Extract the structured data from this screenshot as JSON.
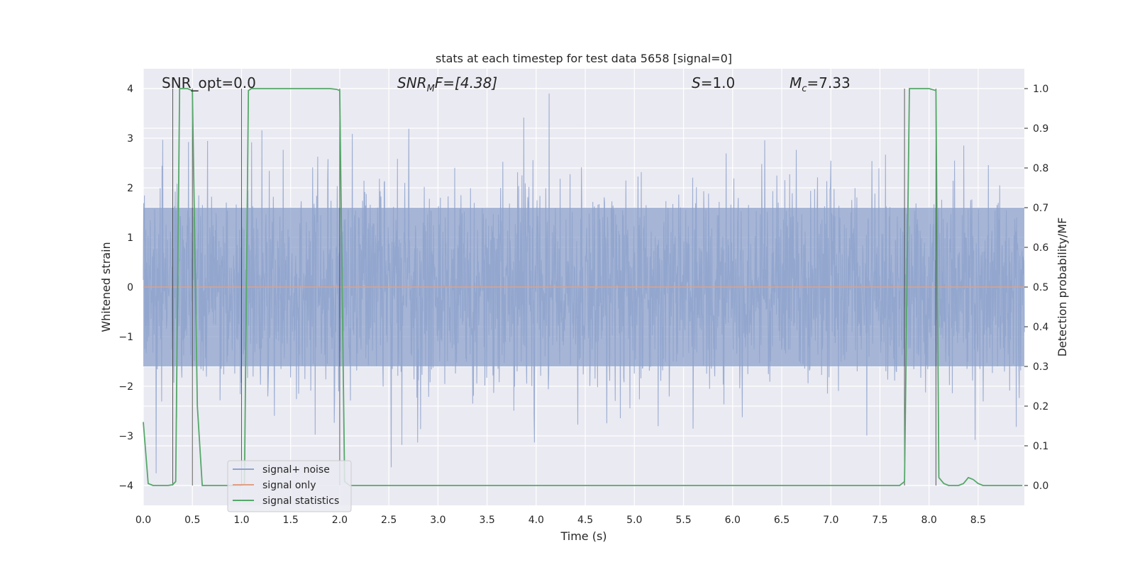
{
  "chart_data": {
    "type": "line",
    "title": "stats at each timestep for test data 5658 [signal=0]",
    "xlabel": "Time (s)",
    "ylabel_left": "Whitened strain",
    "ylabel_right": "Detection probability/MF",
    "xlim": [
      0,
      8.97
    ],
    "ylim_left": [
      -4.4,
      4.4
    ],
    "ylim_right": [
      -0.05,
      1.05
    ],
    "x_ticks": [
      "0.0",
      "0.5",
      "1.0",
      "1.5",
      "2.0",
      "2.5",
      "3.0",
      "3.5",
      "4.0",
      "4.5",
      "5.0",
      "5.5",
      "6.0",
      "6.5",
      "7.0",
      "7.5",
      "8.0",
      "8.5"
    ],
    "y_left_ticks": [
      "4",
      "3",
      "2",
      "1",
      "0",
      "−1",
      "−2",
      "−3",
      "−4"
    ],
    "y_right_ticks": [
      "1.0",
      "0.9",
      "0.8",
      "0.7",
      "0.6",
      "0.5",
      "0.4",
      "0.3",
      "0.2",
      "0.1",
      "0.0"
    ],
    "grid": true,
    "legend_position": "lower-left",
    "annotations": {
      "snr_opt": "SNR_opt=0.0",
      "snr_mf_main": "SNR",
      "snr_mf_sub": "M",
      "snr_mf_rest": "F=[4.38]",
      "s_label": "S",
      "s_rest": "=1.0",
      "mc_main": "M",
      "mc_sub": "c",
      "mc_rest": "=7.33"
    },
    "series": [
      {
        "name": "signal+ noise",
        "color": "#8fa3cc",
        "description_stats": {
          "envelope_approx": 1.6,
          "peak_max": 3.9,
          "peak_min": -4.0
        }
      },
      {
        "name": "signal only",
        "color": "#e0a084",
        "values_constant": 0.0
      },
      {
        "name": "signal statistics",
        "color": "#55a868",
        "x": [
          0.0,
          0.05,
          0.1,
          0.15,
          0.2,
          0.25,
          0.3,
          0.33,
          0.37,
          0.4,
          0.45,
          0.5,
          0.55,
          0.6,
          0.65,
          0.7,
          0.75,
          0.8,
          0.85,
          0.9,
          0.95,
          1.0,
          1.03,
          1.07,
          1.1,
          1.5,
          1.9,
          1.97,
          2.0,
          2.05,
          2.1,
          2.5,
          3.0,
          3.5,
          4.0,
          4.5,
          5.0,
          5.5,
          6.0,
          6.5,
          7.0,
          7.5,
          7.7,
          7.75,
          7.8,
          7.85,
          7.9,
          7.95,
          8.0,
          8.07,
          8.1,
          8.15,
          8.2,
          8.25,
          8.3,
          8.35,
          8.4,
          8.45,
          8.5,
          8.55,
          8.6,
          8.65,
          8.7,
          8.75,
          8.8,
          8.85,
          8.9,
          8.95
        ],
        "y": [
          0.16,
          0.005,
          0.0,
          0.0,
          0.0,
          0.0,
          0.002,
          0.01,
          1.0,
          1.0,
          1.0,
          0.995,
          0.2,
          0.0,
          0.0,
          0.0,
          0.0,
          0.0,
          0.0,
          0.0,
          0.0,
          0.0,
          0.005,
          0.995,
          1.0,
          1.0,
          1.0,
          0.998,
          0.995,
          0.01,
          0.0,
          0.0,
          0.0,
          0.0,
          0.0,
          0.0,
          0.0,
          0.0,
          0.0,
          0.0,
          0.0,
          0.0,
          0.0,
          0.01,
          1.0,
          1.0,
          1.0,
          1.0,
          1.0,
          0.995,
          0.02,
          0.005,
          0.0,
          0.0,
          0.0,
          0.005,
          0.02,
          0.015,
          0.005,
          0.0,
          0.0,
          0.0,
          0.0,
          0.0,
          0.0,
          0.0,
          0.0,
          0.0
        ]
      }
    ]
  }
}
